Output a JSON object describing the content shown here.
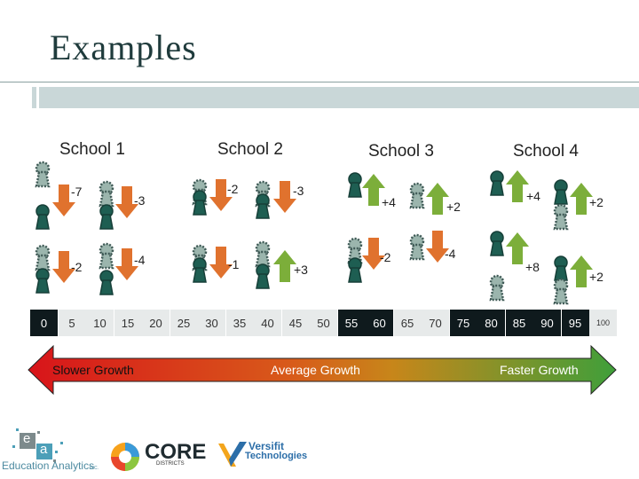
{
  "slide": {
    "title": "Examples"
  },
  "schools": [
    {
      "name": "School 1",
      "deltas": [
        "-7",
        "-3",
        "-2",
        "-4"
      ]
    },
    {
      "name": "School 2",
      "deltas": [
        "-2",
        "-3",
        "-1",
        "+3"
      ]
    },
    {
      "name": "School 3",
      "deltas": [
        "+4",
        "+2",
        "-2",
        "-4"
      ]
    },
    {
      "name": "School 4",
      "deltas": [
        "+4",
        "+2",
        "+8",
        "+2"
      ]
    }
  ],
  "scale": [
    "0",
    "5",
    "10",
    "15",
    "20",
    "25",
    "30",
    "35",
    "40",
    "45",
    "50",
    "55",
    "60",
    "65",
    "70",
    "75",
    "80",
    "85",
    "90",
    "95",
    "100"
  ],
  "growth_bar": {
    "left": "Slower Growth",
    "middle": "Average Growth",
    "right": "Faster Growth"
  },
  "logos": {
    "ea_name": "Education Analytics",
    "ea_suffix": "INC.",
    "ea_letters": [
      "e",
      "a"
    ],
    "core_name": "CORE",
    "core_sub": "DISTRICTS",
    "versifit_line1": "Versifit",
    "versifit_line2": "Technologies"
  },
  "colors": {
    "down_arrow": "#e0722e",
    "up_arrow": "#7cae3a",
    "keyhole_dark": "#1e5e52",
    "keyhole_light": "#3f5a56",
    "scale_dark": "#0f1a1d",
    "growth_red": "#d8141a",
    "growth_green": "#47a23a"
  }
}
